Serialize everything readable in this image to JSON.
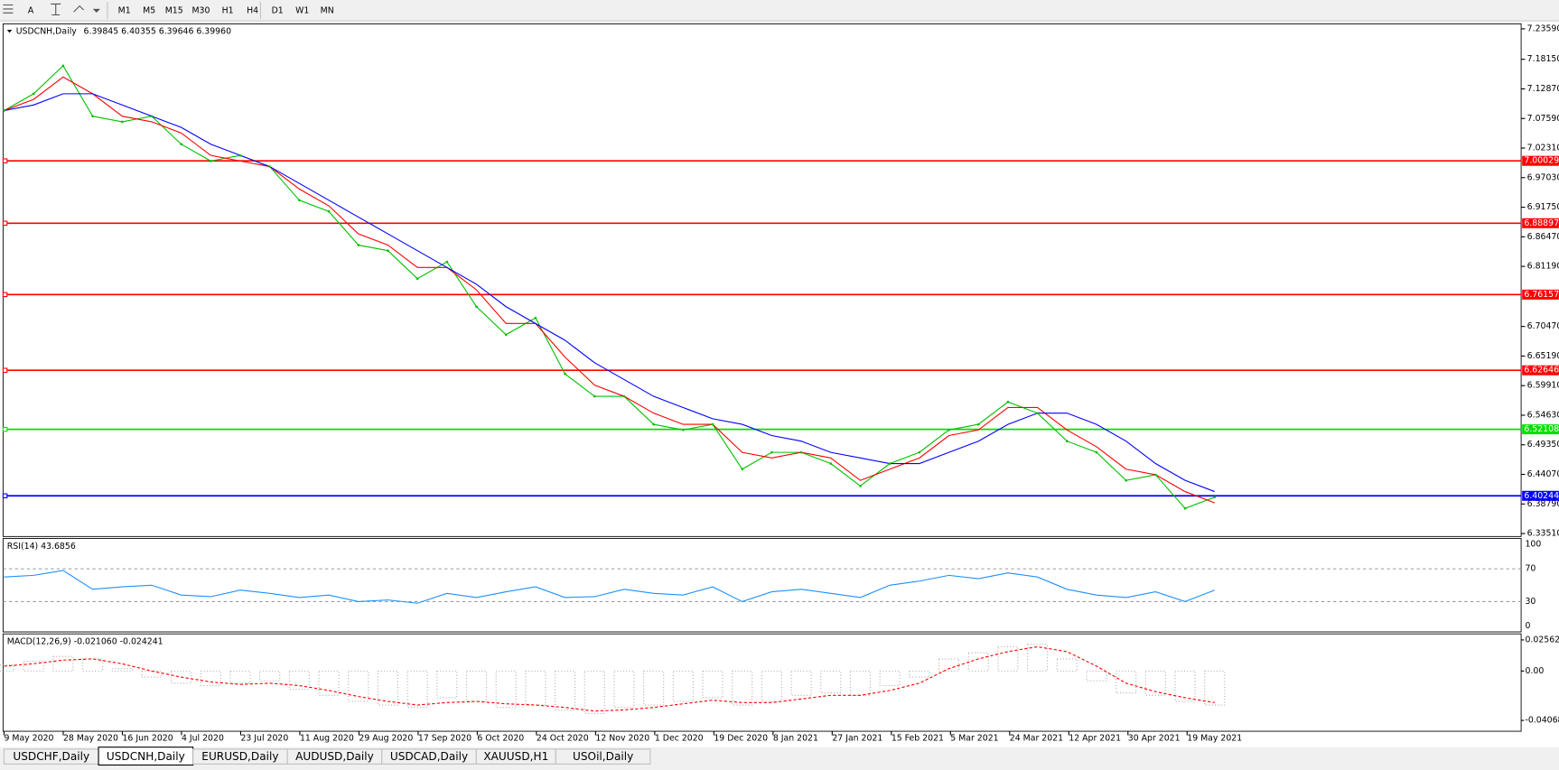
{
  "toolbar": {
    "tools": [
      "A"
    ],
    "timeframes": [
      "M1",
      "M5",
      "M15",
      "M30",
      "H1",
      "H4",
      "D1",
      "W1",
      "MN"
    ]
  },
  "chart": {
    "symbol": "USDCNH,Daily",
    "ohlc": "6.39845 6.40355 6.39646 6.39960",
    "price": {
      "ylim": [
        6.3298,
        7.2448
      ],
      "yticks": [
        {
          "value": 7.2359,
          "label": "7.23590"
        },
        {
          "value": 7.1815,
          "label": "7.18150"
        },
        {
          "value": 7.1287,
          "label": "7.12870"
        },
        {
          "value": 7.0759,
          "label": "7.07590"
        },
        {
          "value": 7.0231,
          "label": "7.02310"
        },
        {
          "value": 6.9703,
          "label": "6.97030"
        },
        {
          "value": 6.9175,
          "label": "6.91750"
        },
        {
          "value": 6.8647,
          "label": "6.86470"
        },
        {
          "value": 6.8119,
          "label": "6.81190"
        },
        {
          "value": 6.7047,
          "label": "6.70470"
        },
        {
          "value": 6.6519,
          "label": "6.65190"
        },
        {
          "value": 6.5991,
          "label": "6.59910"
        },
        {
          "value": 6.5463,
          "label": "6.54630"
        },
        {
          "value": 6.4935,
          "label": "6.49350"
        },
        {
          "value": 6.4407,
          "label": "6.44070"
        },
        {
          "value": 6.3879,
          "label": "6.38790"
        },
        {
          "value": 6.3351,
          "label": "6.33510"
        }
      ],
      "levels": [
        {
          "value": 7.00029,
          "label": "7.00029",
          "color": "#ff0000"
        },
        {
          "value": 6.88897,
          "label": "6.88897",
          "color": "#ff0000"
        },
        {
          "value": 6.76157,
          "label": "6.76157",
          "color": "#ff0000"
        },
        {
          "value": 6.62646,
          "label": "6.62646",
          "color": "#ff0000"
        },
        {
          "value": 6.52108,
          "label": "6.52108",
          "color": "#00e000"
        },
        {
          "value": 6.40244,
          "label": "6.40244",
          "color": "#0000ff"
        }
      ],
      "series": [
        {
          "color": "#00c000",
          "values": [
            7.09,
            7.12,
            7.17,
            7.08,
            7.07,
            7.08,
            7.03,
            7.0,
            7.01,
            6.99,
            6.93,
            6.91,
            6.85,
            6.84,
            6.79,
            6.82,
            6.74,
            6.69,
            6.72,
            6.62,
            6.58,
            6.58,
            6.53,
            6.52,
            6.53,
            6.45,
            6.48,
            6.48,
            6.46,
            6.42,
            6.46,
            6.48,
            6.52,
            6.53,
            6.57,
            6.55,
            6.5,
            6.48,
            6.43,
            6.44,
            6.38,
            6.4
          ]
        },
        {
          "color": "#ff0000",
          "values": [
            7.09,
            7.11,
            7.15,
            7.12,
            7.08,
            7.07,
            7.05,
            7.01,
            7.0,
            6.99,
            6.95,
            6.92,
            6.87,
            6.85,
            6.81,
            6.81,
            6.77,
            6.71,
            6.71,
            6.65,
            6.6,
            6.58,
            6.55,
            6.53,
            6.53,
            6.48,
            6.47,
            6.48,
            6.47,
            6.43,
            6.45,
            6.47,
            6.51,
            6.52,
            6.56,
            6.56,
            6.52,
            6.49,
            6.45,
            6.44,
            6.41,
            6.39
          ]
        },
        {
          "color": "#0000ff",
          "values": [
            7.09,
            7.1,
            7.12,
            7.12,
            7.1,
            7.08,
            7.06,
            7.03,
            7.01,
            6.99,
            6.96,
            6.93,
            6.9,
            6.87,
            6.84,
            6.81,
            6.78,
            6.74,
            6.71,
            6.68,
            6.64,
            6.61,
            6.58,
            6.56,
            6.54,
            6.53,
            6.51,
            6.5,
            6.48,
            6.47,
            6.46,
            6.46,
            6.48,
            6.5,
            6.53,
            6.55,
            6.55,
            6.53,
            6.5,
            6.46,
            6.43,
            6.41
          ]
        }
      ]
    },
    "rsi": {
      "header": "RSI(14) 43.6856",
      "ylim": [
        -7,
        107
      ],
      "yticks": [
        100,
        70,
        30,
        0
      ],
      "color": "#1e90ff",
      "values": [
        60,
        62,
        68,
        45,
        48,
        50,
        38,
        36,
        44,
        40,
        35,
        38,
        30,
        32,
        28,
        40,
        35,
        42,
        48,
        35,
        36,
        45,
        40,
        38,
        48,
        30,
        42,
        45,
        40,
        35,
        50,
        55,
        62,
        58,
        65,
        60,
        45,
        38,
        35,
        42,
        30,
        44
      ]
    },
    "macd": {
      "header": "MACD(12,26,9) -0.021060 -0.024241",
      "ylim": [
        -0.0496,
        0.0306
      ],
      "yticks": [
        0.025623,
        {
          "value": 0,
          "label": "0.00"
        },
        -0.040683
      ],
      "histogram": {
        "color": "#b0b0b0",
        "values": [
          0.005,
          0.008,
          0.012,
          0.01,
          0.002,
          -0.005,
          -0.01,
          -0.012,
          -0.01,
          -0.008,
          -0.015,
          -0.02,
          -0.025,
          -0.028,
          -0.03,
          -0.022,
          -0.025,
          -0.03,
          -0.028,
          -0.032,
          -0.035,
          -0.03,
          -0.028,
          -0.025,
          -0.022,
          -0.028,
          -0.025,
          -0.02,
          -0.018,
          -0.02,
          -0.012,
          -0.005,
          0.01,
          0.015,
          0.02,
          0.022,
          0.01,
          -0.008,
          -0.018,
          -0.02,
          -0.025,
          -0.028
        ]
      },
      "signal": {
        "color": "#ff0000",
        "values": [
          0.004,
          0.006,
          0.009,
          0.01,
          0.006,
          0.0,
          -0.005,
          -0.009,
          -0.011,
          -0.01,
          -0.012,
          -0.016,
          -0.021,
          -0.025,
          -0.028,
          -0.026,
          -0.025,
          -0.027,
          -0.028,
          -0.03,
          -0.033,
          -0.032,
          -0.03,
          -0.027,
          -0.024,
          -0.026,
          -0.026,
          -0.023,
          -0.02,
          -0.02,
          -0.016,
          -0.01,
          0.002,
          0.01,
          0.016,
          0.02,
          0.016,
          0.004,
          -0.01,
          -0.017,
          -0.022,
          -0.026
        ]
      }
    },
    "dates": [
      "9 May 2020",
      "28 May 2020",
      "16 Jun 2020",
      "4 Jul 2020",
      "23 Jul 2020",
      "11 Aug 2020",
      "29 Aug 2020",
      "17 Sep 2020",
      "6 Oct 2020",
      "24 Oct 2020",
      "12 Nov 2020",
      "1 Dec 2020",
      "19 Dec 2020",
      "8 Jan 2021",
      "27 Jan 2021",
      "15 Feb 2021",
      "5 Mar 2021",
      "24 Mar 2021",
      "12 Apr 2021",
      "30 Apr 2021",
      "19 May 2021"
    ]
  },
  "tabs": {
    "items": [
      "USDCHF,Daily",
      "USDCNH,Daily",
      "EURUSD,Daily",
      "AUDUSD,Daily",
      "USDCAD,Daily",
      "XAUUSD,H1",
      "USOil,Daily"
    ],
    "active": 1
  }
}
